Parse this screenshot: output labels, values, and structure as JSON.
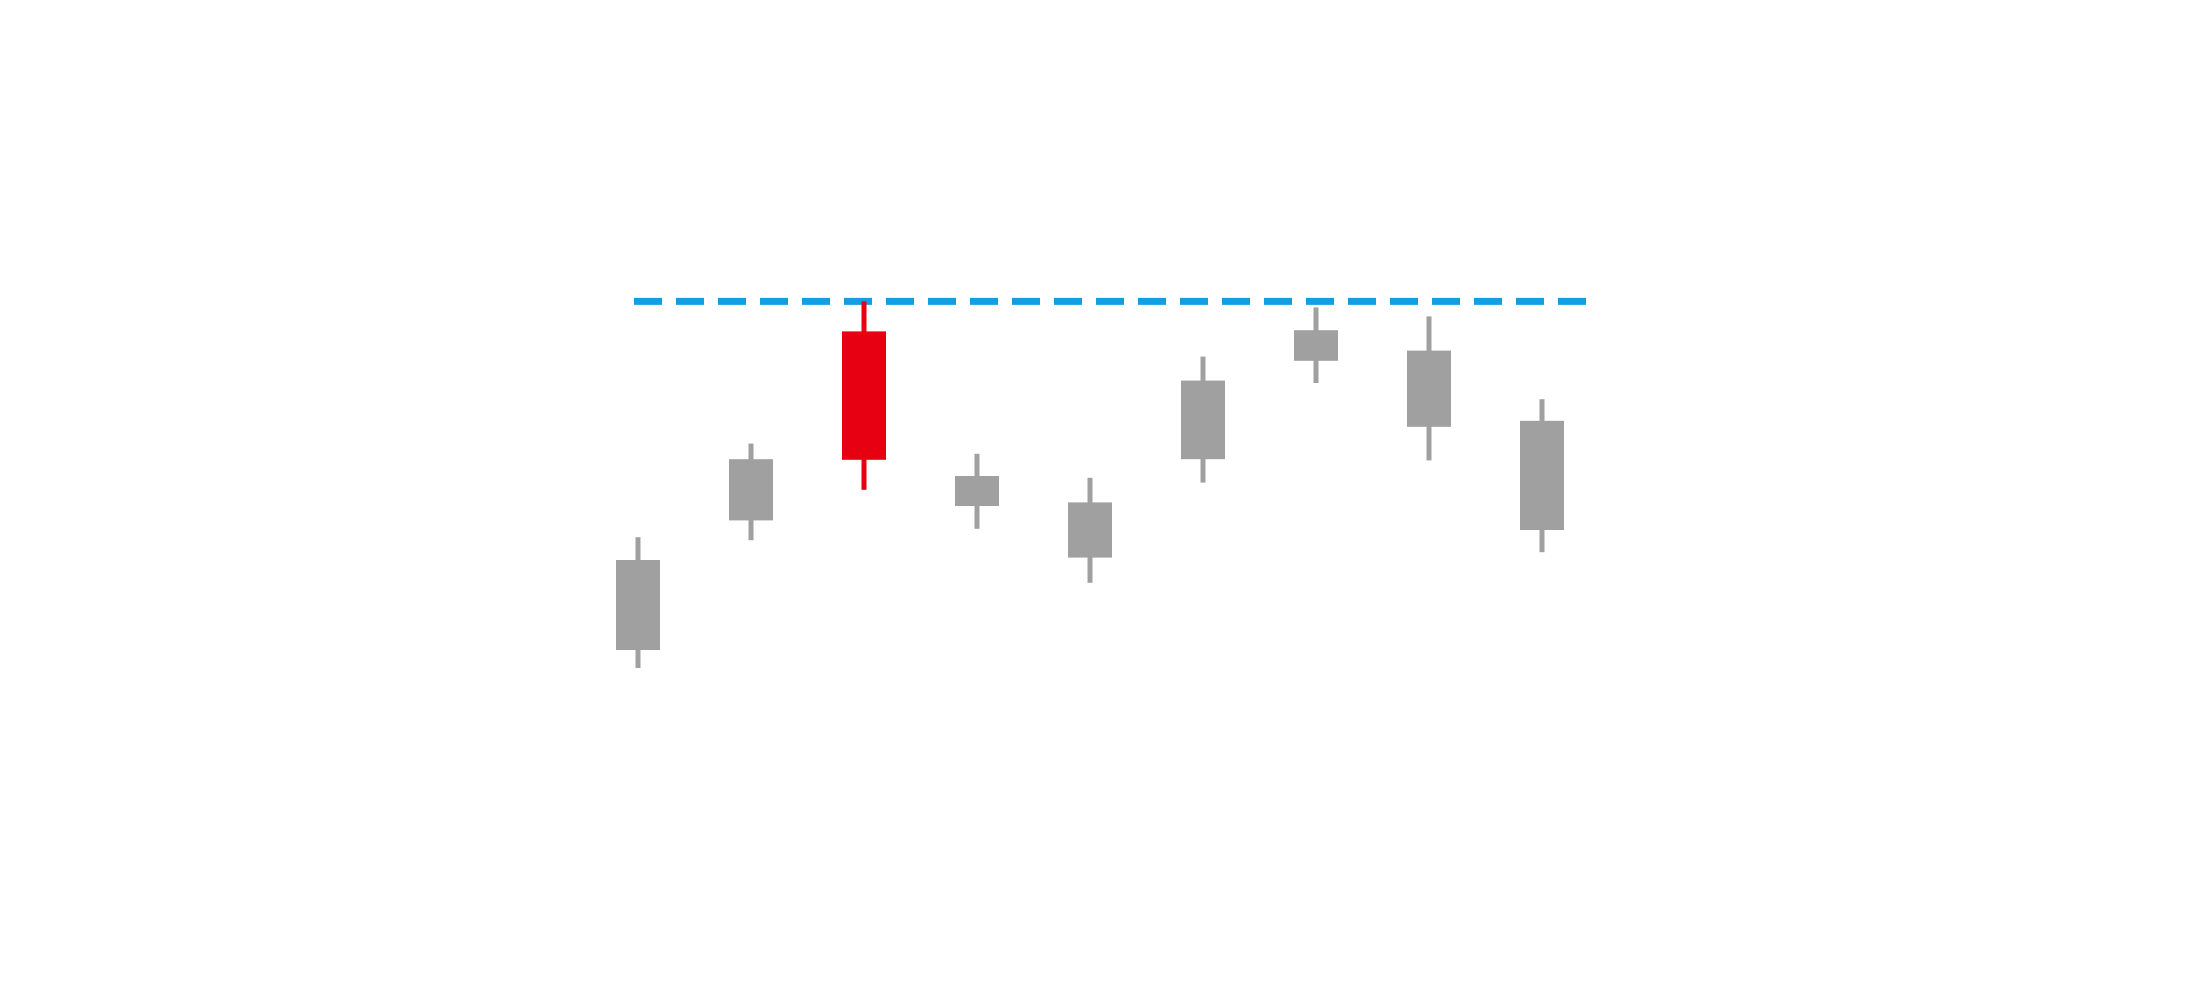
{
  "chart_data": {
    "type": "candlestick",
    "title": "",
    "xlabel": "",
    "ylabel": "",
    "grid": false,
    "legend": "none",
    "ylim": [
      0,
      100
    ],
    "candles": [
      {
        "open": 40.0,
        "close": 25.0,
        "high": 43.8,
        "low": 22.0,
        "highlight": false
      },
      {
        "open": 56.8,
        "close": 46.6,
        "high": 59.4,
        "low": 43.3,
        "highlight": false
      },
      {
        "open": 78.1,
        "close": 56.7,
        "high": 83.1,
        "low": 51.7,
        "highlight": true
      },
      {
        "open": 54.0,
        "close": 49.0,
        "high": 57.7,
        "low": 45.2,
        "highlight": false
      },
      {
        "open": 49.6,
        "close": 40.4,
        "high": 53.7,
        "low": 36.2,
        "highlight": false
      },
      {
        "open": 69.9,
        "close": 56.8,
        "high": 73.9,
        "low": 52.9,
        "highlight": false
      },
      {
        "open": 78.3,
        "close": 73.2,
        "high": 82.1,
        "low": 69.5,
        "highlight": false
      },
      {
        "open": 74.9,
        "close": 62.2,
        "high": 80.6,
        "low": 56.6,
        "highlight": false
      },
      {
        "open": 63.2,
        "close": 45.0,
        "high": 66.8,
        "low": 41.3,
        "highlight": false
      }
    ],
    "reference_line": {
      "value": 83.1,
      "style": "dashed",
      "color": "#139fdf"
    },
    "colors": {
      "normal": "#a0a0a0",
      "highlight": "#e60012"
    }
  }
}
